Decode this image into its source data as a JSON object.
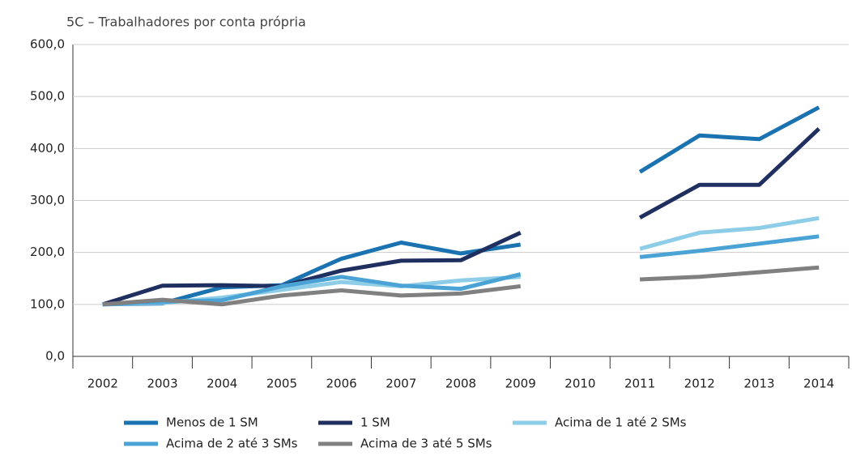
{
  "chart_data": {
    "type": "line",
    "title": "5C – Trabalhadores por conta própria",
    "categories": [
      "2002",
      "2003",
      "2004",
      "2005",
      "2006",
      "2007",
      "2008",
      "2009",
      "2010",
      "2011",
      "2012",
      "2013",
      "2014"
    ],
    "series": [
      {
        "name": "Menos de 1 SM",
        "color": "#1a72b0",
        "values": [
          100,
          102,
          133,
          137,
          188,
          219,
          198,
          215,
          null,
          355,
          425,
          418,
          479
        ]
      },
      {
        "name": "1 SM",
        "color": "#1f2f5f",
        "values": [
          100,
          136,
          137,
          135,
          165,
          184,
          185,
          238,
          null,
          267,
          330,
          330,
          438
        ]
      },
      {
        "name": "Acima de 1 até 2 SMs",
        "color": "#8ecde8",
        "values": [
          100,
          103,
          113,
          128,
          143,
          135,
          146,
          153,
          null,
          207,
          238,
          247,
          266
        ]
      },
      {
        "name": "Acima de 2 até 3 SMs",
        "color": "#4aa3d4",
        "values": [
          100,
          105,
          108,
          135,
          153,
          136,
          130,
          158,
          null,
          191,
          203,
          217,
          231
        ]
      },
      {
        "name": "Acima de 3 até 5 SMs",
        "color": "#808080",
        "values": [
          100,
          109,
          100,
          117,
          127,
          117,
          121,
          135,
          null,
          148,
          153,
          162,
          171
        ]
      }
    ],
    "ylim": [
      0,
      600
    ],
    "yticks": [
      {
        "value": 0,
        "label": "0,0"
      },
      {
        "value": 100,
        "label": "100,0"
      },
      {
        "value": 200,
        "label": "200,0"
      },
      {
        "value": 300,
        "label": "300,0"
      },
      {
        "value": 400,
        "label": "400,0"
      },
      {
        "value": 500,
        "label": "500,0"
      },
      {
        "value": 600,
        "label": "600,0"
      }
    ],
    "grid": true
  }
}
